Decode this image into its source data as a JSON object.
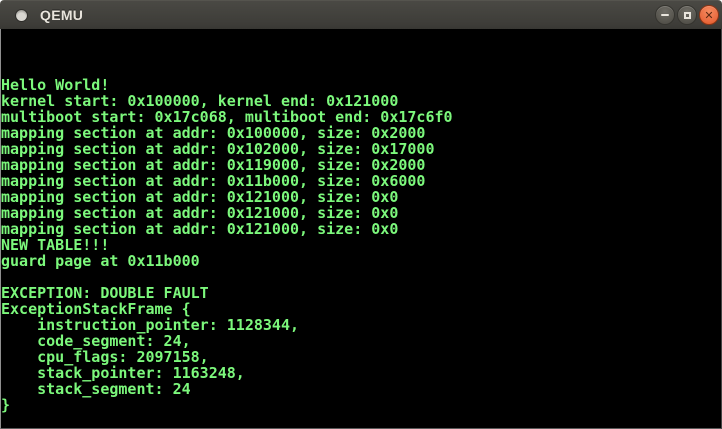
{
  "window": {
    "title": "QEMU",
    "controls": {
      "minimize_name": "minimize",
      "maximize_name": "maximize",
      "close_name": "close",
      "close_glyph": "✕"
    }
  },
  "colors": {
    "terminal_background": "#000000",
    "terminal_text": "#7cf87c",
    "titlebar_background": "#3d3c38",
    "close_button_orange": "#ea6a3f"
  },
  "terminal": {
    "lines": [
      "",
      "",
      "",
      "Hello World!",
      "kernel start: 0x100000, kernel end: 0x121000",
      "multiboot start: 0x17c068, multiboot end: 0x17c6f0",
      "mapping section at addr: 0x100000, size: 0x2000",
      "mapping section at addr: 0x102000, size: 0x17000",
      "mapping section at addr: 0x119000, size: 0x2000",
      "mapping section at addr: 0x11b000, size: 0x6000",
      "mapping section at addr: 0x121000, size: 0x0",
      "mapping section at addr: 0x121000, size: 0x0",
      "mapping section at addr: 0x121000, size: 0x0",
      "NEW TABLE!!!",
      "guard page at 0x11b000",
      "",
      "EXCEPTION: DOUBLE FAULT",
      "ExceptionStackFrame {",
      "    instruction_pointer: 1128344,",
      "    code_segment: 24,",
      "    cpu_flags: 2097158,",
      "    stack_pointer: 1163248,",
      "    stack_segment: 24",
      "}",
      ""
    ]
  }
}
